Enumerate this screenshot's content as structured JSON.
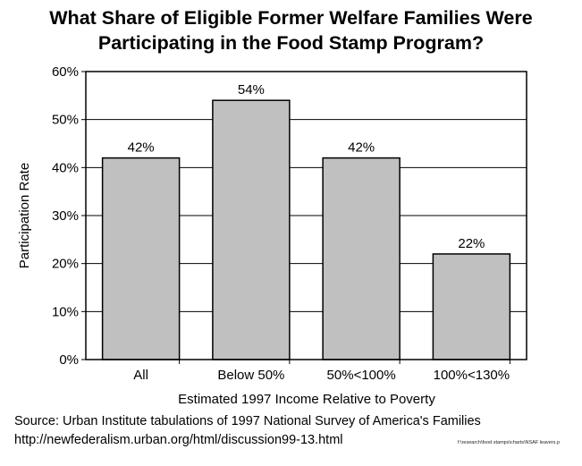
{
  "title_lines": [
    "What Share of Eligible Former Welfare Families Were",
    "Participating in the Food Stamp Program?"
  ],
  "source_lines": [
    "Source: Urban Institute tabulations of 1997 National Survey of America's Families",
    "http://newfederalism.urban.org/html/discussion99-13.html"
  ],
  "file_path": "f:\\research\\food stamps\\charts\\NSAF leavers.p",
  "colors": {
    "bar_fill": "#c0c0c0",
    "bar_stroke": "#000000",
    "grid": "#000000"
  },
  "chart_data": {
    "type": "bar",
    "title": "What Share of Eligible Former Welfare Families Were Participating in the Food Stamp Program?",
    "xlabel": "Estimated 1997 Income Relative to Poverty",
    "ylabel": "Participation Rate",
    "categories": [
      "All",
      "Below 50%",
      "50%<100%",
      "100%<130%"
    ],
    "values": [
      42,
      54,
      42,
      22
    ],
    "data_labels": [
      "42%",
      "54%",
      "42%",
      "22%"
    ],
    "ylim": [
      0,
      60
    ],
    "yticks": [
      0,
      10,
      20,
      30,
      40,
      50,
      60
    ],
    "ytick_labels": [
      "0%",
      "10%",
      "20%",
      "30%",
      "40%",
      "50%",
      "60%"
    ],
    "grid": true,
    "legend": "none"
  }
}
